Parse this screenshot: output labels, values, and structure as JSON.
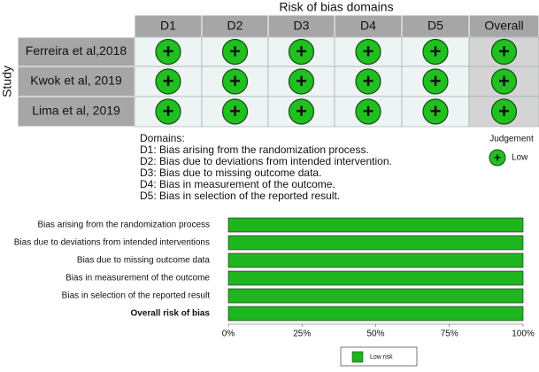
{
  "traffic_light": {
    "title": "Risk of bias domains",
    "axis_label": "Study",
    "columns": [
      "D1",
      "D2",
      "D3",
      "D4",
      "D5",
      "Overall"
    ],
    "rows": [
      {
        "study": "Ferreira et al,2018",
        "judgements": [
          "+",
          "+",
          "+",
          "+",
          "+",
          "+"
        ]
      },
      {
        "study": "Kwok et al, 2019",
        "judgements": [
          "+",
          "+",
          "+",
          "+",
          "+",
          "+"
        ]
      },
      {
        "study": "Lima et al, 2019",
        "judgements": [
          "+",
          "+",
          "+",
          "+",
          "+",
          "+"
        ]
      }
    ],
    "domains_title": "Domains:",
    "domains": [
      "D1: Bias arising from the randomization process.",
      "D2: Bias due to deviations from intended intervention.",
      "D3: Bias due to missing outcome data.",
      "D4: Bias in measurement of the outcome.",
      "D5: Bias in selection of the reported result."
    ],
    "legend_title": "Judgement",
    "legend": [
      {
        "symbol": "+",
        "label": "Low",
        "color": "#1fc01f"
      }
    ]
  },
  "chart_data": {
    "type": "bar",
    "orientation": "horizontal",
    "categories": [
      "Bias arising from the randomization process",
      "Bias due to deviations from intended interventions",
      "Bias due to missing outcome data",
      "Bias in measurement of the outcome",
      "Bias in selection of the reported result",
      "Overall risk of bias"
    ],
    "series": [
      {
        "name": "Low risk",
        "color": "#1fb51f",
        "values": [
          100,
          100,
          100,
          100,
          100,
          100
        ]
      }
    ],
    "xlim": [
      0,
      100
    ],
    "xticks": [
      {
        "value": 0,
        "label": "0%"
      },
      {
        "value": 25,
        "label": "25%"
      },
      {
        "value": 50,
        "label": "50%"
      },
      {
        "value": 75,
        "label": "75%"
      },
      {
        "value": 100,
        "label": "100%"
      }
    ]
  }
}
